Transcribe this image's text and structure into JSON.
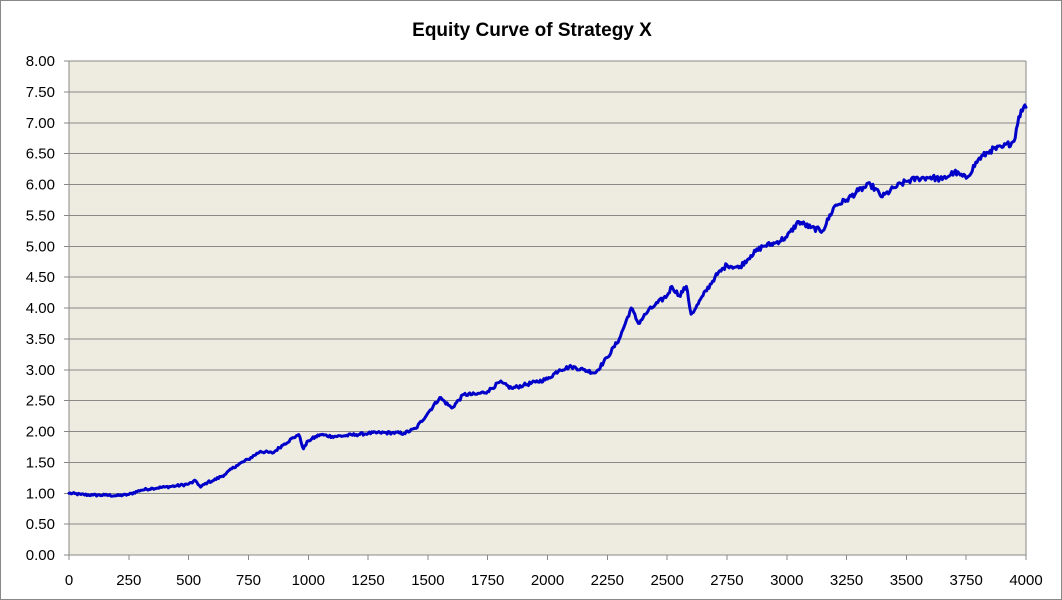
{
  "chart_data": {
    "type": "line",
    "title": "Equity Curve of Strategy X",
    "xlabel": "",
    "ylabel": "",
    "xlim": [
      0,
      4000
    ],
    "ylim": [
      0,
      8
    ],
    "x_ticks": [
      "0",
      "250",
      "500",
      "750",
      "1000",
      "1250",
      "1500",
      "1750",
      "2000",
      "2250",
      "2500",
      "2750",
      "3000",
      "3250",
      "3500",
      "3750",
      "4000"
    ],
    "y_ticks": [
      "0.00",
      "0.50",
      "1.00",
      "1.50",
      "2.00",
      "2.50",
      "3.00",
      "3.50",
      "4.00",
      "4.50",
      "5.00",
      "5.50",
      "6.00",
      "6.50",
      "7.00",
      "7.50",
      "8.00"
    ],
    "grid": "horizontal",
    "legend": "none",
    "colors": {
      "series": "#0000c8",
      "plot_background": "#eeece1",
      "gridline": "#888888",
      "axis": "#888888"
    },
    "series": [
      {
        "x": [
          0,
          50,
          100,
          150,
          200,
          250,
          300,
          350,
          400,
          450,
          500,
          530,
          550,
          580,
          600,
          650,
          700,
          750,
          800,
          850,
          900,
          950,
          960,
          980,
          1000,
          1050,
          1100,
          1150,
          1200,
          1250,
          1300,
          1350,
          1400,
          1450,
          1500,
          1550,
          1600,
          1650,
          1700,
          1750,
          1800,
          1850,
          1900,
          1950,
          2000,
          2050,
          2100,
          2150,
          2200,
          2250,
          2300,
          2350,
          2380,
          2420,
          2450,
          2500,
          2520,
          2550,
          2580,
          2600,
          2620,
          2650,
          2700,
          2750,
          2800,
          2850,
          2900,
          2950,
          3000,
          3050,
          3100,
          3150,
          3200,
          3250,
          3300,
          3350,
          3400,
          3450,
          3500,
          3550,
          3600,
          3650,
          3700,
          3750,
          3800,
          3850,
          3900,
          3950,
          3970,
          3990,
          4000
        ],
        "y": [
          1.0,
          0.98,
          0.97,
          0.97,
          0.96,
          0.98,
          1.05,
          1.08,
          1.1,
          1.12,
          1.15,
          1.2,
          1.1,
          1.18,
          1.2,
          1.3,
          1.45,
          1.55,
          1.68,
          1.65,
          1.8,
          1.93,
          1.95,
          1.72,
          1.85,
          1.95,
          1.92,
          1.93,
          1.95,
          1.97,
          1.98,
          1.98,
          1.97,
          2.05,
          2.3,
          2.55,
          2.38,
          2.6,
          2.6,
          2.65,
          2.8,
          2.7,
          2.75,
          2.8,
          2.85,
          3.0,
          3.05,
          3.0,
          2.95,
          3.2,
          3.5,
          4.0,
          3.75,
          3.95,
          4.05,
          4.2,
          4.35,
          4.2,
          4.35,
          3.9,
          4.0,
          4.2,
          4.5,
          4.7,
          4.65,
          4.85,
          5.0,
          5.05,
          5.15,
          5.4,
          5.3,
          5.25,
          5.65,
          5.75,
          5.9,
          6.0,
          5.8,
          5.95,
          6.05,
          6.1,
          6.12,
          6.08,
          6.2,
          6.1,
          6.4,
          6.55,
          6.6,
          6.7,
          7.1,
          7.25,
          7.25
        ]
      }
    ]
  }
}
